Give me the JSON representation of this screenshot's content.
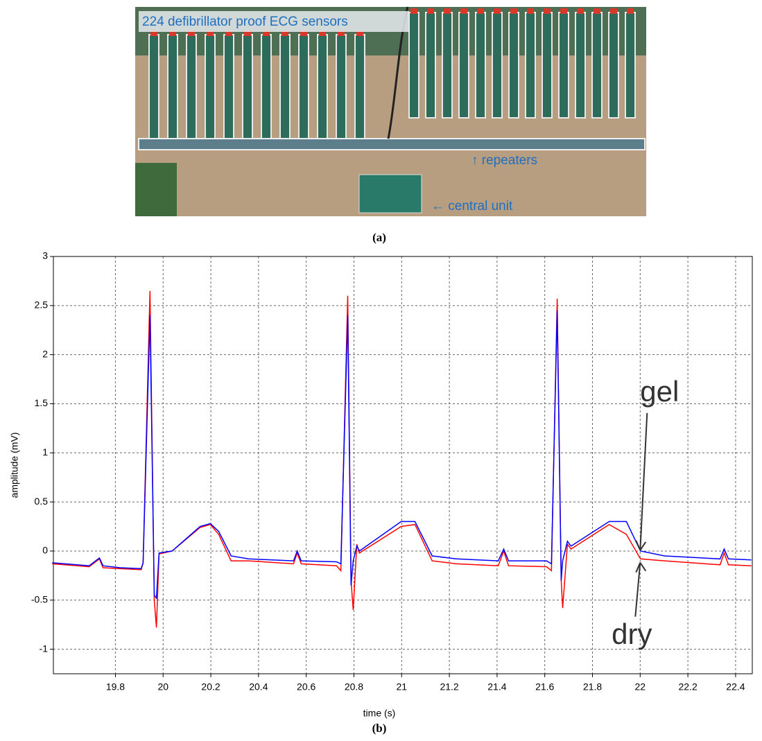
{
  "photo": {
    "labels": [
      "224 defibrillator proof ECG sensors",
      "↑ repeaters",
      "← central unit"
    ]
  },
  "captions": [
    "(a)",
    "(b)"
  ],
  "chart_data": {
    "type": "line",
    "xlabel": "time (s)",
    "ylabel": "amplitude (mV)",
    "x": [
      19.535,
      19.69,
      19.733,
      19.748,
      19.82,
      19.908,
      19.916,
      19.945,
      19.963,
      19.972,
      19.983,
      20.038,
      20.155,
      20.198,
      20.233,
      20.285,
      20.358,
      20.547,
      20.562,
      20.579,
      20.727,
      20.745,
      20.774,
      20.788,
      20.797,
      20.812,
      20.823,
      20.998,
      21.056,
      21.128,
      21.23,
      21.405,
      21.428,
      21.448,
      21.608,
      21.628,
      21.652,
      21.669,
      21.675,
      21.695,
      21.71,
      21.87,
      21.942,
      22.001,
      22.102,
      22.335,
      22.352,
      22.37,
      22.466
    ],
    "series": [
      {
        "name": "dry",
        "color": "#ff0000",
        "values": [
          -0.13,
          -0.16,
          -0.08,
          -0.17,
          -0.18,
          -0.19,
          -0.12,
          2.65,
          -0.5,
          -0.78,
          -0.03,
          0.0,
          0.24,
          0.27,
          0.17,
          -0.1,
          -0.1,
          -0.13,
          -0.02,
          -0.13,
          -0.15,
          -0.2,
          2.6,
          -0.3,
          -0.6,
          0.07,
          -0.02,
          0.25,
          0.27,
          -0.1,
          -0.13,
          -0.15,
          0.0,
          -0.15,
          -0.16,
          -0.2,
          2.57,
          -0.3,
          -0.58,
          0.07,
          0.02,
          0.27,
          0.17,
          -0.08,
          -0.1,
          -0.14,
          -0.02,
          -0.14,
          -0.15
        ]
      },
      {
        "name": "gel",
        "color": "#0000ff",
        "values": [
          -0.12,
          -0.15,
          -0.07,
          -0.15,
          -0.17,
          -0.18,
          -0.12,
          2.4,
          -0.45,
          -0.48,
          -0.02,
          0.0,
          0.25,
          0.28,
          0.2,
          -0.05,
          -0.08,
          -0.1,
          0.0,
          -0.1,
          -0.11,
          -0.13,
          2.4,
          -0.35,
          -0.1,
          0.05,
          0.0,
          0.3,
          0.3,
          -0.05,
          -0.08,
          -0.1,
          0.02,
          -0.1,
          -0.1,
          -0.13,
          2.45,
          -0.3,
          -0.1,
          0.1,
          0.05,
          0.3,
          0.3,
          0.0,
          -0.05,
          -0.08,
          0.02,
          -0.08,
          -0.09
        ]
      }
    ],
    "xlim": [
      19.54,
      22.47
    ],
    "ylim": [
      -1.25,
      3
    ],
    "xticks": [
      19.8,
      20,
      20.2,
      20.4,
      20.6,
      20.8,
      21,
      21.2,
      21.4,
      21.6,
      21.8,
      22,
      22.2,
      22.4
    ],
    "yticks": [
      -1,
      -0.5,
      0,
      0.5,
      1,
      1.5,
      2,
      2.5,
      3
    ],
    "grid": true,
    "annotations": [
      {
        "text": "gel",
        "x": 22.0,
        "y": -0.02
      },
      {
        "text": "dry",
        "x": 22.0,
        "y": -0.09
      }
    ]
  }
}
